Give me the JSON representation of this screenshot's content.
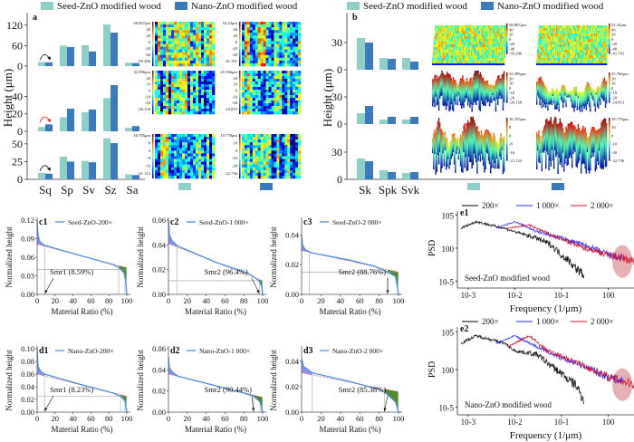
{
  "colors": {
    "seed": "#8ecfc7",
    "nano": "#3a7bbd",
    "purple_fill": "#7b7be8",
    "green_fill": "#4f8a2b",
    "curve": "#4a90e2",
    "psd_200": "#000000",
    "psd_1000": "#2a2aff",
    "psd_2000": "#d0102a",
    "highlight": "#d97a80"
  },
  "legend": {
    "seed": "Seed-ZnO modified wood",
    "nano": "Nano-ZnO modified wood"
  },
  "panel_a": {
    "label": "a",
    "ylabel": "Height (μm)",
    "categories": [
      "Sq",
      "Sp",
      "Sv",
      "Sz",
      "Sa"
    ],
    "rows": [
      {
        "ylim": [
          0,
          130
        ],
        "yticks": [
          "0",
          "60",
          "120"
        ],
        "ytick_values": [
          0,
          60,
          120
        ],
        "seed": [
          12,
          60,
          61,
          122,
          10
        ],
        "nano": [
          11,
          56,
          43,
          98,
          9
        ],
        "arrow": "down"
      },
      {
        "ylim": [
          0,
          55
        ],
        "yticks": [
          "0",
          "20",
          "40"
        ],
        "ytick_values": [
          0,
          20,
          40
        ],
        "seed": [
          5,
          16,
          22,
          38,
          4
        ],
        "nano": [
          8,
          26,
          25,
          53,
          6
        ],
        "arrow": "up"
      },
      {
        "ylim": [
          0,
          60
        ],
        "yticks": [
          "0",
          "25",
          "50"
        ],
        "ytick_values": [
          0,
          25,
          50
        ],
        "seed": [
          9,
          32,
          26,
          58,
          7
        ],
        "nano": [
          8,
          25,
          24,
          51,
          6
        ],
        "arrow": "down"
      }
    ],
    "maps": [
      [
        "58.807μm",
        "40",
        "20",
        "0",
        "-20",
        "-40",
        "-59.296"
      ],
      [
        "52.23μm",
        "40",
        "20",
        "0",
        "-20",
        "-40",
        "-41.701"
      ],
      [
        "32.396μm",
        "20",
        "10",
        "0",
        "-10",
        "-20",
        "-26.158"
      ],
      [
        "25.766μm",
        "20",
        "10",
        "0",
        "-10",
        "-20",
        "-24.813"
      ],
      [
        "16.705μm",
        "8",
        "0",
        "-8",
        "-16",
        "-21.123"
      ],
      [
        "19.778μm",
        "10",
        "0",
        "-10",
        "-20",
        "-22.736"
      ]
    ]
  },
  "panel_b": {
    "label": "b",
    "ylabel": "Height (μm)",
    "categories": [
      "Sk",
      "Spk",
      "Svk"
    ],
    "rows": [
      {
        "ylim": [
          0,
          40
        ],
        "yticks": [
          "0",
          "30"
        ],
        "ytick_values": [
          0,
          30
        ],
        "seed": [
          35,
          13,
          13
        ],
        "nano": [
          30,
          12,
          9
        ]
      },
      {
        "ylim": [
          0,
          40
        ],
        "yticks": [
          "0",
          "30"
        ],
        "ytick_values": [
          0,
          30
        ],
        "seed": [
          12,
          5,
          5
        ],
        "nano": [
          20,
          8,
          8
        ]
      },
      {
        "ylim": [
          0,
          40
        ],
        "yticks": [
          "0",
          "30"
        ],
        "ytick_values": [
          0,
          30
        ],
        "seed": [
          23,
          10,
          7
        ],
        "nano": [
          20,
          8,
          8
        ]
      }
    ],
    "surfaces": [
      [
        "58.807μm",
        "40",
        "20",
        "0",
        "-20",
        "-40",
        "-59.296"
      ],
      [
        "52.23μm",
        "40",
        "20",
        "0",
        "-20",
        "-40",
        "-41.701"
      ],
      [
        "32.396μm",
        "20",
        "10",
        "0",
        "-10",
        "-20",
        "-26.158"
      ],
      [
        "25.766μm",
        "20",
        "10",
        "0",
        "-10",
        "-20",
        "-24.813"
      ],
      [
        "16.705μm",
        "8",
        "0",
        "-8",
        "-16",
        "-21.123"
      ],
      [
        "19.778μm",
        "10",
        "0",
        "-10",
        "-20",
        "-22.736"
      ]
    ]
  },
  "chart_data": [
    {
      "id": "a",
      "type": "bar",
      "categories": [
        "Sq",
        "Sp",
        "Sv",
        "Sz",
        "Sa"
      ],
      "ylabel": "Height (μm)",
      "series": [
        {
          "name": "Seed-ZnO modified wood",
          "rows": [
            [
              12,
              60,
              61,
              122,
              10
            ],
            [
              5,
              16,
              22,
              38,
              4
            ],
            [
              9,
              32,
              26,
              58,
              7
            ]
          ]
        },
        {
          "name": "Nano-ZnO modified wood",
          "rows": [
            [
              11,
              56,
              43,
              98,
              9
            ],
            [
              8,
              26,
              25,
              53,
              6
            ],
            [
              8,
              25,
              24,
              51,
              6
            ]
          ]
        }
      ]
    },
    {
      "id": "b",
      "type": "bar",
      "categories": [
        "Sk",
        "Spk",
        "Svk"
      ],
      "ylabel": "Height (μm)",
      "series": [
        {
          "name": "Seed-ZnO modified wood",
          "rows": [
            [
              35,
              13,
              13
            ],
            [
              12,
              5,
              5
            ],
            [
              23,
              10,
              7
            ]
          ]
        },
        {
          "name": "Nano-ZnO modified wood",
          "rows": [
            [
              30,
              12,
              9
            ],
            [
              20,
              8,
              8
            ],
            [
              20,
              8,
              8
            ]
          ]
        }
      ]
    },
    {
      "id": "c1",
      "type": "line",
      "title": "c1",
      "legend": "Seed-ZnO-200×",
      "xlabel": "Material Ratio (%)",
      "ylabel": "Normalized height",
      "xlim": [
        0,
        100
      ],
      "xticks": [
        "0",
        "20",
        "40",
        "60",
        "80",
        "100"
      ],
      "ylim": [
        0,
        0.12
      ],
      "yticks": [
        "0.00",
        "0.03",
        "0.06",
        "0.09",
        "0.12"
      ],
      "ytick_values": [
        0,
        0.03,
        0.06,
        0.09,
        0.12
      ],
      "curve": [
        [
          0,
          0.12
        ],
        [
          1,
          0.095
        ],
        [
          3,
          0.085
        ],
        [
          8.59,
          0.079
        ],
        [
          50,
          0.062
        ],
        [
          85,
          0.048
        ],
        [
          91.4,
          0.043
        ],
        [
          97,
          0.035
        ],
        [
          99,
          0.02
        ],
        [
          100,
          0
        ]
      ],
      "dash": [
        0.081,
        0.043
      ],
      "hline": 0.04,
      "vlines": [
        8.59,
        91,
        98
      ],
      "smr": {
        "label": "Smr1 (8.59%)",
        "value": 8.59
      }
    },
    {
      "id": "c2",
      "type": "line",
      "title": "c2",
      "legend": "Seed-ZnO-1 000×",
      "xlabel": "Material Ratio (%)",
      "ylabel": "Normalized height",
      "xlim": [
        0,
        100
      ],
      "xticks": [
        "0",
        "20",
        "40",
        "60",
        "80",
        "100"
      ],
      "ylim": [
        0,
        0.06
      ],
      "yticks": [
        "0.00",
        "0.02",
        "0.04",
        "0.06"
      ],
      "ytick_values": [
        0,
        0.02,
        0.04,
        0.06
      ],
      "curve": [
        [
          0,
          0.06
        ],
        [
          1,
          0.048
        ],
        [
          4,
          0.043
        ],
        [
          10,
          0.039
        ],
        [
          50,
          0.026
        ],
        [
          85,
          0.017
        ],
        [
          96.4,
          0.011
        ],
        [
          99,
          0.006
        ],
        [
          100,
          0
        ]
      ],
      "dash": [
        0.041,
        0.011
      ],
      "hline": 0.011,
      "vlines": [
        9,
        96.4
      ],
      "smr": {
        "label": "Smr2 (96.4%)",
        "value": 96.4
      }
    },
    {
      "id": "c3",
      "type": "line",
      "title": "c3",
      "legend": "Seed-ZnO-2 000×",
      "xlabel": "Material Ratio (%)",
      "ylabel": "Normalized height",
      "xlim": [
        0,
        100
      ],
      "xticks": [
        "0",
        "20",
        "40",
        "60",
        "80",
        "100"
      ],
      "ylim": [
        0,
        0.05
      ],
      "yticks": [
        "0.00",
        "0.02",
        "0.04"
      ],
      "ytick_values": [
        0,
        0.02,
        0.04
      ],
      "curve": [
        [
          0,
          0.04
        ],
        [
          1,
          0.033
        ],
        [
          4,
          0.03
        ],
        [
          10,
          0.028
        ],
        [
          50,
          0.023
        ],
        [
          75,
          0.019
        ],
        [
          88.76,
          0.015
        ],
        [
          97,
          0.012
        ],
        [
          100,
          0
        ]
      ],
      "dash": [
        0.0295,
        0.015
      ],
      "hline": 0.015,
      "vlines": [
        8,
        88.76
      ],
      "smr": {
        "label": "Smr2 (88.76%)",
        "value": 88.76
      }
    },
    {
      "id": "d1",
      "type": "line",
      "title": "d1",
      "legend": "Nano-ZnO-200×",
      "xlabel": "Material Ratio (%)",
      "ylabel": "Normalized height",
      "xlim": [
        0,
        100
      ],
      "xticks": [
        "0",
        "20",
        "40",
        "60",
        "80",
        "100"
      ],
      "ylim": [
        0,
        0.1
      ],
      "yticks": [
        "0.00",
        "0.02",
        "0.04",
        "0.06",
        "0.08",
        "0.10"
      ],
      "ytick_values": [
        0,
        0.02,
        0.04,
        0.06,
        0.08,
        0.1
      ],
      "curve": [
        [
          0,
          0.1
        ],
        [
          1,
          0.072
        ],
        [
          4,
          0.064
        ],
        [
          8.23,
          0.06
        ],
        [
          50,
          0.043
        ],
        [
          85,
          0.03
        ],
        [
          93,
          0.025
        ],
        [
          98,
          0.018
        ],
        [
          100,
          0
        ]
      ],
      "dash": [
        0.06,
        0.025
      ],
      "hline": 0.025,
      "vlines": [
        8.23,
        93,
        98
      ],
      "smr": {
        "label": "Smr1 (8.23%)",
        "value": 8.23
      }
    },
    {
      "id": "d2",
      "type": "line",
      "title": "d2",
      "legend": "Nano-ZnO-1 000×",
      "xlabel": "Material Ratio (%)",
      "ylabel": "Normalized height",
      "xlim": [
        0,
        100
      ],
      "xticks": [
        "0",
        "20",
        "40",
        "60",
        "80",
        "100"
      ],
      "ylim": [
        0,
        0.06
      ],
      "yticks": [
        "0.00",
        "0.02",
        "0.04",
        "0.06"
      ],
      "ytick_values": [
        0,
        0.02,
        0.04,
        0.06
      ],
      "curve": [
        [
          0,
          0.052
        ],
        [
          1,
          0.042
        ],
        [
          4,
          0.038
        ],
        [
          10,
          0.034
        ],
        [
          50,
          0.025
        ],
        [
          80,
          0.018
        ],
        [
          90.44,
          0.015
        ],
        [
          97,
          0.01
        ],
        [
          100,
          0
        ]
      ],
      "dash": [
        0.036,
        0.014
      ],
      "hline": null,
      "vlines": [
        90.44,
        98
      ],
      "smr": {
        "label": "Smr2 (90.44%)",
        "value": 90.44
      }
    },
    {
      "id": "d3",
      "type": "line",
      "title": "d3",
      "legend": "Nano-ZnO-2 000×",
      "xlabel": "Material Ratio (%)",
      "ylabel": "Normalized height",
      "xlim": [
        0,
        100
      ],
      "xticks": [
        "0",
        "20",
        "40",
        "60",
        "80",
        "100"
      ],
      "ylim": [
        0,
        0.05
      ],
      "yticks": [
        "0.00",
        "0.02",
        "0.04"
      ],
      "ytick_values": [
        0,
        0.02,
        0.04
      ],
      "curve": [
        [
          0,
          0.042
        ],
        [
          2,
          0.036
        ],
        [
          11,
          0.031
        ],
        [
          50,
          0.024
        ],
        [
          80,
          0.018
        ],
        [
          85.38,
          0.016
        ],
        [
          97,
          0.008
        ],
        [
          100,
          0
        ]
      ],
      "dash": [
        0.031,
        0.016
      ],
      "hline": null,
      "vlines": [
        11,
        85.38
      ],
      "smr": {
        "label": "Smr2 (85.38%)",
        "value": 85.38
      }
    },
    {
      "id": "e1",
      "type": "line",
      "scale": "log-log",
      "title": "e1",
      "annotation": "Seed-ZnO modified wood",
      "xlabel": "Frequency (1/μm)",
      "ylabel": "PSD",
      "xtick_values": [
        0.001,
        0.01,
        0.1,
        1
      ],
      "xticks": [
        "10-3",
        "10-2",
        "10-1",
        "100"
      ],
      "ytick_values": [
        100000,
        1,
        1e-05
      ],
      "yticks": [
        "105",
        "100",
        "10-5"
      ],
      "series": [
        {
          "name": "200×",
          "freq": [
            0.0007,
            0.0015,
            0.003,
            0.006,
            0.01,
            0.03,
            0.06,
            0.1,
            0.15,
            0.2,
            0.3
          ],
          "psd": [
            1000,
            10000,
            3000,
            1000,
            300,
            30,
            3,
            0.1,
            0.01,
            0.001,
            0.0001
          ]
        },
        {
          "name": "1 000×",
          "freq": [
            0.004,
            0.01,
            0.03,
            0.1,
            0.3,
            1,
            2
          ],
          "psd": [
            1000,
            10000,
            300,
            30,
            3,
            0.1,
            0.03
          ]
        },
        {
          "name": "2 000×",
          "freq": [
            0.007,
            0.02,
            0.06,
            0.2,
            1,
            4
          ],
          "psd": [
            1000,
            3000,
            100,
            3,
            0.1,
            0.01
          ]
        }
      ],
      "highlight_freq": 2
    },
    {
      "id": "e2",
      "type": "line",
      "scale": "log-log",
      "title": "e2",
      "annotation": "Nano-ZnO modified wood",
      "xlabel": "Frequency (1/μm)",
      "ylabel": "PSD",
      "xtick_values": [
        0.001,
        0.01,
        0.1,
        1
      ],
      "xticks": [
        "10-3",
        "10-2",
        "10-1",
        "100"
      ],
      "ytick_values": [
        100000,
        1,
        1e-05
      ],
      "yticks": [
        "105",
        "100",
        "10-5"
      ],
      "series": [
        {
          "name": "200×",
          "freq": [
            0.0007,
            0.0015,
            0.003,
            0.006,
            0.01,
            0.03,
            0.06,
            0.1,
            0.15,
            0.2,
            0.3
          ],
          "psd": [
            3000,
            30000,
            10000,
            3000,
            300,
            100,
            3,
            0.3,
            0.03,
            0.01,
            0.0001
          ]
        },
        {
          "name": "1 000×",
          "freq": [
            0.004,
            0.01,
            0.03,
            0.1,
            0.3,
            1,
            2
          ],
          "psd": [
            3000,
            30000,
            1000,
            30,
            3,
            0.1,
            0.03
          ]
        },
        {
          "name": "2 000×",
          "freq": [
            0.007,
            0.02,
            0.05,
            0.2,
            1,
            4
          ],
          "psd": [
            1000,
            30000,
            300,
            10,
            0.1,
            0.01
          ]
        }
      ],
      "highlight_freq": 2
    }
  ]
}
